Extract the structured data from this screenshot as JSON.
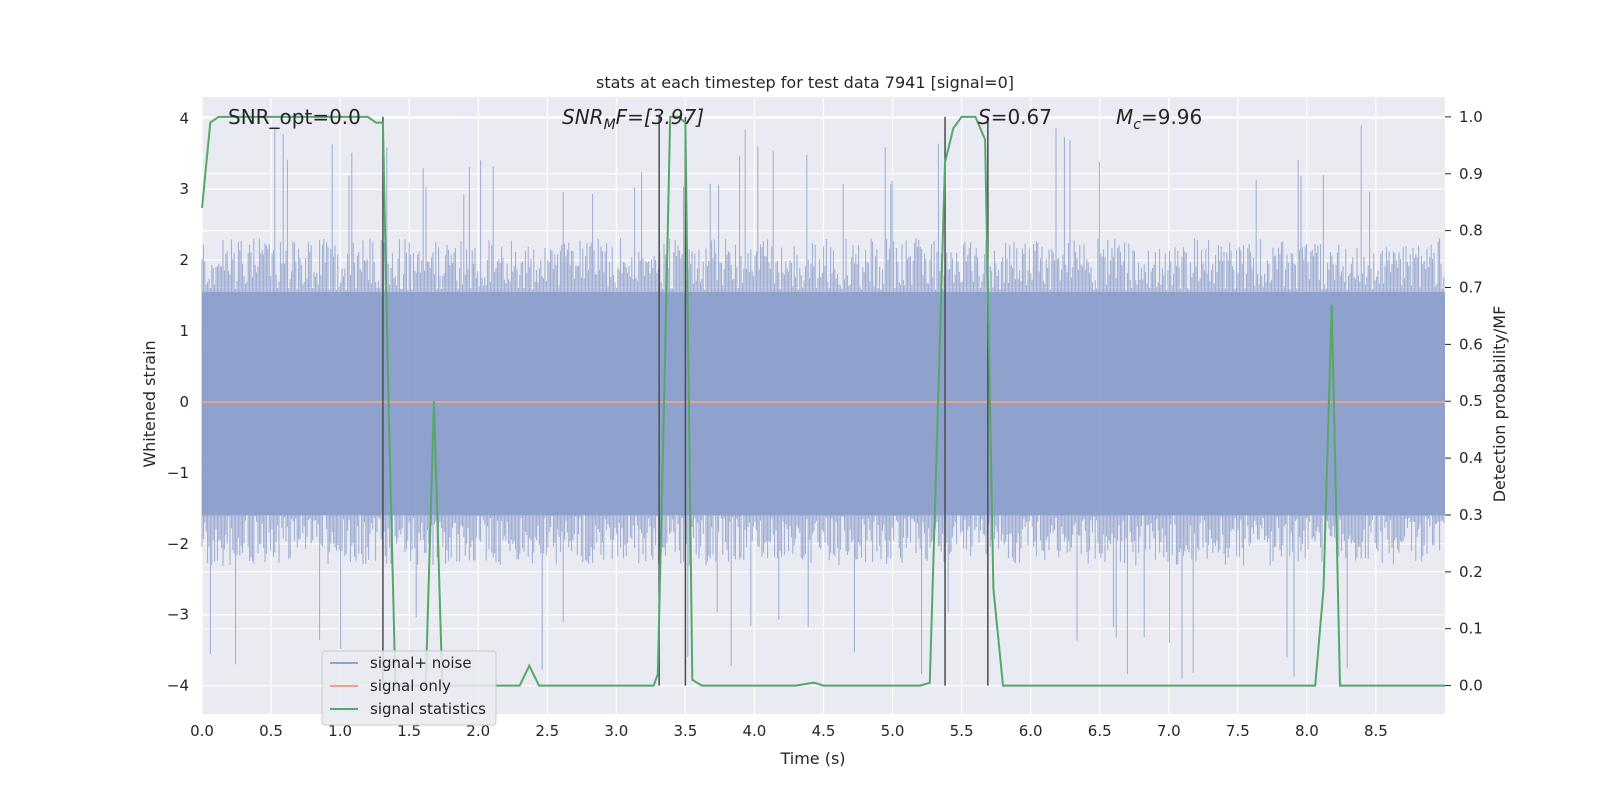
{
  "chart_data": {
    "type": "line",
    "title": "stats at each timestep for test data 7941 [signal=0]",
    "xlabel": "Time (s)",
    "ylabel_left": "Whitened strain",
    "ylabel_right": "Detection probability/MF",
    "xlim": [
      0,
      9.0
    ],
    "ylim_left": [
      -4.4,
      4.3
    ],
    "ylim_right": [
      -0.05,
      1.035
    ],
    "grid": true,
    "x_ticks": [
      "0.0",
      "0.5",
      "1.0",
      "1.5",
      "2.0",
      "2.5",
      "3.0",
      "3.5",
      "4.0",
      "4.5",
      "5.0",
      "5.5",
      "6.0",
      "6.5",
      "7.0",
      "7.5",
      "8.0",
      "8.5"
    ],
    "y_left_ticks": [
      "4",
      "3",
      "2",
      "1",
      "0",
      "−1",
      "−2",
      "−3",
      "−4"
    ],
    "y_left_tick_values": [
      4,
      3,
      2,
      1,
      0,
      -1,
      -2,
      -3,
      -4
    ],
    "y_right_ticks": [
      "1.0",
      "0.9",
      "0.8",
      "0.7",
      "0.6",
      "0.5",
      "0.4",
      "0.3",
      "0.2",
      "0.1",
      "0.0"
    ],
    "y_right_tick_values": [
      1.0,
      0.9,
      0.8,
      0.7,
      0.6,
      0.5,
      0.4,
      0.3,
      0.2,
      0.1,
      0.0
    ],
    "annotations": {
      "snr_opt": "SNR_opt=0.0",
      "snr_mf_sym": "SNR",
      "snr_mf_sub": "M",
      "snr_mf_rest": "F=[3.97]",
      "s_sym": "S",
      "s_rest": "=0.67",
      "mc_sym": "M",
      "mc_sub": "c",
      "mc_rest": "=9.96"
    },
    "vertical_lines_x": [
      1.31,
      3.31,
      3.5,
      5.38,
      5.69
    ],
    "series": [
      {
        "name": "signal+ noise",
        "axis": "left",
        "color": "#8da0cb",
        "style": "noise",
        "typical_range": [
          -2.1,
          2.1
        ],
        "extreme_range": [
          -3.9,
          3.9
        ]
      },
      {
        "name": "signal only",
        "axis": "left",
        "color": "#e8a38a",
        "values_constant": 0
      },
      {
        "name": "signal statistics",
        "axis": "right",
        "color": "#55a868",
        "x": [
          0.0,
          0.06,
          0.12,
          0.2,
          0.3,
          0.5,
          1.0,
          1.2,
          1.26,
          1.31,
          1.35,
          1.4,
          1.55,
          1.62,
          1.68,
          1.74,
          1.8,
          1.9,
          2.0,
          2.2,
          2.3,
          2.37,
          2.44,
          2.6,
          2.8,
          3.0,
          3.2,
          3.27,
          3.3,
          3.35,
          3.39,
          3.45,
          3.5,
          3.55,
          3.62,
          3.7,
          3.8,
          4.0,
          4.3,
          4.43,
          4.5,
          4.7,
          5.0,
          5.2,
          5.27,
          5.33,
          5.38,
          5.44,
          5.5,
          5.6,
          5.67,
          5.73,
          5.8,
          5.86,
          5.95,
          6.2,
          6.7,
          7.2,
          7.7,
          8.06,
          8.12,
          8.18,
          8.24,
          8.3,
          8.5,
          8.75,
          9.0
        ],
        "values": [
          0.84,
          0.99,
          1.0,
          1.0,
          1.0,
          1.0,
          1.0,
          1.0,
          0.99,
          0.99,
          0.5,
          0.0,
          0.0,
          0.0,
          0.5,
          0.0,
          0.0,
          0.0,
          0.0,
          0.0,
          0.0,
          0.035,
          0.0,
          0.0,
          0.0,
          0.0,
          0.0,
          0.0,
          0.02,
          0.55,
          1.0,
          1.0,
          0.99,
          0.01,
          0.0,
          0.0,
          0.0,
          0.0,
          0.0,
          0.005,
          0.0,
          0.0,
          0.0,
          0.0,
          0.005,
          0.5,
          0.92,
          0.98,
          1.0,
          1.0,
          0.96,
          0.17,
          0.0,
          0.0,
          0.0,
          0.0,
          0.0,
          0.0,
          0.0,
          0.0,
          0.17,
          0.67,
          0.0,
          0.0,
          0.0,
          0.0,
          0.0
        ]
      }
    ],
    "legend": {
      "placement": "lower-left",
      "entries": [
        "signal+ noise",
        "signal only",
        "signal statistics"
      ]
    },
    "colors": {
      "plot_background": "#eaeaf2",
      "grid": "#ffffff",
      "vertical_line": "#4d4d4d"
    }
  }
}
